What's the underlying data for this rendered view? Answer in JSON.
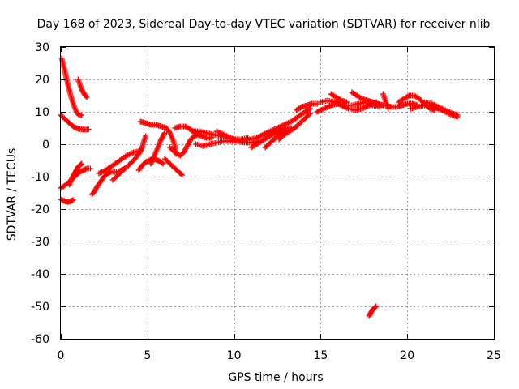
{
  "chart_data": {
    "type": "scatter",
    "title": "Day 168 of 2023, Sidereal Day-to-day VTEC variation (SDTVAR) for receiver nlib",
    "xlabel": "GPS time / hours",
    "ylabel": "SDTVAR / TECUs",
    "xlim": [
      0,
      25
    ],
    "ylim": [
      -60,
      30
    ],
    "xticks": [
      0,
      5,
      10,
      15,
      20,
      25
    ],
    "yticks": [
      30,
      20,
      10,
      0,
      -10,
      -20,
      -30,
      -40,
      -50,
      -60
    ],
    "grid": true,
    "marker": "+",
    "color": "#ff0000",
    "segments": [
      {
        "name": "arc-a",
        "points": [
          [
            0.05,
            26.5
          ],
          [
            0.15,
            24.5
          ],
          [
            0.3,
            21
          ],
          [
            0.45,
            17.5
          ],
          [
            0.6,
            14.5
          ],
          [
            0.75,
            12
          ],
          [
            0.9,
            10
          ],
          [
            1.05,
            9
          ],
          [
            1.2,
            9
          ]
        ]
      },
      {
        "name": "arc-b",
        "points": [
          [
            1.0,
            20
          ],
          [
            1.1,
            18.5
          ],
          [
            1.2,
            17
          ],
          [
            1.35,
            15.5
          ],
          [
            1.5,
            14.5
          ]
        ]
      },
      {
        "name": "arc-c",
        "points": [
          [
            0.0,
            9
          ],
          [
            0.2,
            8
          ],
          [
            0.4,
            7
          ],
          [
            0.6,
            6
          ],
          [
            0.8,
            5.2
          ],
          [
            1.0,
            4.8
          ],
          [
            1.2,
            4.6
          ],
          [
            1.45,
            4.5
          ],
          [
            1.6,
            4.6
          ]
        ]
      },
      {
        "name": "arc-d",
        "points": [
          [
            0.0,
            -13.5
          ],
          [
            0.15,
            -13
          ],
          [
            0.3,
            -12.5
          ],
          [
            0.5,
            -11.5
          ],
          [
            0.7,
            -10.5
          ],
          [
            0.9,
            -9.5
          ],
          [
            1.1,
            -8.5
          ],
          [
            1.3,
            -8
          ],
          [
            1.5,
            -7.5
          ],
          [
            1.7,
            -7.5
          ]
        ]
      },
      {
        "name": "arc-e",
        "points": [
          [
            0.5,
            -12.5
          ],
          [
            0.6,
            -11
          ],
          [
            0.7,
            -10
          ],
          [
            0.8,
            -9
          ],
          [
            0.9,
            -8
          ],
          [
            1.0,
            -7
          ],
          [
            1.1,
            -6.5
          ],
          [
            1.2,
            -6
          ]
        ]
      },
      {
        "name": "arc-f",
        "points": [
          [
            0.0,
            -17
          ],
          [
            0.2,
            -17.5
          ],
          [
            0.4,
            -17.8
          ],
          [
            0.6,
            -17.5
          ],
          [
            0.7,
            -17.2
          ]
        ]
      },
      {
        "name": "arc-g",
        "points": [
          [
            1.8,
            -15.5
          ],
          [
            1.95,
            -14.5
          ],
          [
            2.1,
            -13
          ],
          [
            2.3,
            -11.5
          ],
          [
            2.5,
            -10
          ],
          [
            2.7,
            -9
          ],
          [
            2.9,
            -8.5
          ],
          [
            3.1,
            -8.5
          ],
          [
            3.3,
            -8.5
          ],
          [
            3.5,
            -8
          ],
          [
            3.7,
            -7.5
          ]
        ]
      },
      {
        "name": "arc-h",
        "points": [
          [
            2.2,
            -9
          ],
          [
            2.6,
            -8
          ],
          [
            3.0,
            -6.5
          ],
          [
            3.4,
            -5
          ],
          [
            3.8,
            -3.5
          ],
          [
            4.2,
            -2.5
          ],
          [
            4.6,
            -2
          ]
        ]
      },
      {
        "name": "arc-i",
        "points": [
          [
            3.0,
            -11
          ],
          [
            3.3,
            -9.5
          ],
          [
            3.6,
            -8
          ],
          [
            3.9,
            -6.5
          ],
          [
            4.2,
            -5
          ],
          [
            4.5,
            -3
          ],
          [
            4.7,
            -1
          ],
          [
            4.8,
            1
          ],
          [
            4.9,
            2.5
          ]
        ]
      },
      {
        "name": "arc-j",
        "points": [
          [
            4.5,
            -8
          ],
          [
            4.7,
            -6.5
          ],
          [
            4.9,
            -5.5
          ],
          [
            5.1,
            -5
          ],
          [
            5.3,
            -4.5
          ],
          [
            5.5,
            -4.8
          ],
          [
            5.7,
            -5.2
          ],
          [
            5.9,
            -6
          ]
        ]
      },
      {
        "name": "arc-k",
        "points": [
          [
            4.6,
            7
          ],
          [
            4.9,
            6.5
          ],
          [
            5.2,
            6
          ],
          [
            5.5,
            6
          ],
          [
            5.8,
            5.5
          ],
          [
            6.1,
            5
          ],
          [
            6.3,
            3.5
          ],
          [
            6.5,
            1
          ],
          [
            6.6,
            -1
          ],
          [
            6.65,
            -3
          ]
        ]
      },
      {
        "name": "arc-l",
        "points": [
          [
            5.2,
            -6
          ],
          [
            5.4,
            -3.5
          ],
          [
            5.6,
            -1
          ],
          [
            5.75,
            1
          ],
          [
            5.9,
            2.5
          ],
          [
            6.0,
            3.5
          ]
        ]
      },
      {
        "name": "arc-m",
        "points": [
          [
            6.0,
            -4.5
          ],
          [
            6.2,
            -5.5
          ],
          [
            6.4,
            -6.5
          ],
          [
            6.6,
            -7.5
          ],
          [
            6.8,
            -8.5
          ],
          [
            7.0,
            -9.5
          ]
        ]
      },
      {
        "name": "arc-n",
        "points": [
          [
            6.3,
            -1
          ],
          [
            6.6,
            -2.5
          ],
          [
            6.9,
            -3.5
          ],
          [
            7.1,
            -2.5
          ],
          [
            7.3,
            -0.5
          ],
          [
            7.5,
            1.5
          ],
          [
            7.7,
            2.5
          ],
          [
            7.9,
            3
          ],
          [
            8.1,
            3
          ]
        ]
      },
      {
        "name": "arc-o",
        "points": [
          [
            6.6,
            5
          ],
          [
            6.9,
            5.5
          ],
          [
            7.2,
            5.5
          ],
          [
            7.5,
            4.5
          ],
          [
            7.8,
            3.5
          ],
          [
            8.1,
            2.5
          ],
          [
            8.4,
            2
          ],
          [
            8.7,
            2
          ]
        ]
      },
      {
        "name": "arc-p",
        "points": [
          [
            7.6,
            4
          ],
          [
            8.0,
            4
          ],
          [
            8.4,
            3.5
          ],
          [
            8.8,
            3
          ],
          [
            9.2,
            2.5
          ],
          [
            9.6,
            2
          ],
          [
            10.0,
            1.5
          ],
          [
            10.4,
            1.5
          ],
          [
            10.8,
            2
          ]
        ]
      },
      {
        "name": "arc-q",
        "points": [
          [
            7.8,
            0
          ],
          [
            8.2,
            -0.5
          ],
          [
            8.6,
            0
          ],
          [
            9.0,
            0.5
          ],
          [
            9.4,
            1
          ],
          [
            9.8,
            1
          ],
          [
            10.2,
            1
          ]
        ]
      },
      {
        "name": "arc-r",
        "points": [
          [
            9.0,
            4
          ],
          [
            9.4,
            3
          ],
          [
            9.8,
            2
          ],
          [
            10.2,
            1
          ],
          [
            10.6,
            0.5
          ],
          [
            11.0,
            0.5
          ],
          [
            11.4,
            1
          ]
        ]
      },
      {
        "name": "arc-s",
        "points": [
          [
            10.5,
            1
          ],
          [
            10.9,
            1.5
          ],
          [
            11.3,
            2
          ],
          [
            11.7,
            3
          ],
          [
            12.1,
            4
          ],
          [
            12.5,
            5
          ],
          [
            12.9,
            6
          ],
          [
            13.3,
            7
          ],
          [
            13.7,
            8.5
          ],
          [
            14.1,
            10
          ],
          [
            14.4,
            11
          ]
        ]
      },
      {
        "name": "arc-t",
        "points": [
          [
            11.0,
            -1
          ],
          [
            11.3,
            0
          ],
          [
            11.6,
            1
          ],
          [
            11.9,
            2
          ],
          [
            12.2,
            3
          ],
          [
            12.5,
            4
          ],
          [
            12.8,
            5
          ]
        ]
      },
      {
        "name": "arc-u",
        "points": [
          [
            11.8,
            -1
          ],
          [
            12.1,
            0.5
          ],
          [
            12.4,
            2
          ],
          [
            12.7,
            3.5
          ],
          [
            13.0,
            4.5
          ],
          [
            13.3,
            5
          ]
        ]
      },
      {
        "name": "arc-v",
        "points": [
          [
            12.6,
            1.5
          ],
          [
            12.9,
            3
          ],
          [
            13.2,
            4
          ],
          [
            13.5,
            5
          ],
          [
            13.8,
            6.5
          ],
          [
            14.1,
            8
          ],
          [
            14.4,
            9.5
          ]
        ]
      },
      {
        "name": "arc-w",
        "points": [
          [
            13.6,
            10.5
          ],
          [
            13.9,
            11.5
          ],
          [
            14.2,
            12
          ],
          [
            14.5,
            12.5
          ],
          [
            14.8,
            12.5
          ]
        ]
      },
      {
        "name": "arc-x",
        "points": [
          [
            14.8,
            10
          ],
          [
            15.2,
            11
          ],
          [
            15.6,
            12
          ],
          [
            16.0,
            12.5
          ],
          [
            16.4,
            12
          ],
          [
            16.8,
            12
          ],
          [
            17.2,
            12.5
          ],
          [
            17.6,
            13
          ],
          [
            18.0,
            12
          ],
          [
            18.4,
            11.5
          ]
        ]
      },
      {
        "name": "arc-y",
        "points": [
          [
            15.0,
            13
          ],
          [
            15.4,
            13.5
          ],
          [
            15.8,
            13
          ],
          [
            16.2,
            12
          ],
          [
            16.6,
            11
          ],
          [
            17.0,
            10.5
          ],
          [
            17.4,
            11
          ],
          [
            17.8,
            12
          ],
          [
            18.2,
            13
          ]
        ]
      },
      {
        "name": "arc-z",
        "points": [
          [
            15.6,
            15.5
          ],
          [
            15.9,
            14.5
          ],
          [
            16.2,
            13.5
          ],
          [
            16.5,
            13
          ]
        ]
      },
      {
        "name": "arc-aa",
        "points": [
          [
            16.8,
            16
          ],
          [
            17.1,
            15
          ],
          [
            17.4,
            14
          ],
          [
            17.7,
            13.5
          ],
          [
            18.0,
            13
          ],
          [
            18.3,
            12.5
          ],
          [
            18.6,
            12
          ]
        ]
      },
      {
        "name": "arc-ab",
        "points": [
          [
            18.6,
            15.5
          ],
          [
            18.7,
            14
          ],
          [
            18.8,
            12.5
          ],
          [
            18.9,
            11
          ]
        ]
      },
      {
        "name": "arc-ac",
        "points": [
          [
            18.8,
            12
          ],
          [
            19.1,
            11.5
          ],
          [
            19.4,
            11.5
          ],
          [
            19.7,
            12
          ],
          [
            20.0,
            12.5
          ],
          [
            20.3,
            12.5
          ],
          [
            20.6,
            12
          ]
        ]
      },
      {
        "name": "arc-ad",
        "points": [
          [
            19.5,
            13
          ],
          [
            19.8,
            14
          ],
          [
            20.1,
            15
          ],
          [
            20.4,
            15
          ],
          [
            20.7,
            14
          ],
          [
            21.0,
            12.5
          ],
          [
            21.3,
            11
          ],
          [
            21.6,
            10.5
          ]
        ]
      },
      {
        "name": "arc-ae",
        "points": [
          [
            20.2,
            11
          ],
          [
            20.6,
            11.5
          ],
          [
            21.0,
            12
          ],
          [
            21.4,
            12
          ],
          [
            21.8,
            11
          ],
          [
            22.2,
            10
          ],
          [
            22.6,
            9
          ],
          [
            22.9,
            8.5
          ]
        ]
      },
      {
        "name": "arc-af",
        "points": [
          [
            21.0,
            13
          ],
          [
            21.4,
            12.5
          ],
          [
            21.8,
            11.5
          ],
          [
            22.2,
            10.5
          ],
          [
            22.6,
            9.5
          ],
          [
            22.9,
            9
          ]
        ]
      },
      {
        "name": "arc-ag",
        "points": [
          [
            17.8,
            -53
          ],
          [
            17.9,
            -52
          ],
          [
            18.0,
            -51
          ],
          [
            18.1,
            -50.5
          ],
          [
            18.2,
            -50
          ]
        ]
      }
    ]
  }
}
